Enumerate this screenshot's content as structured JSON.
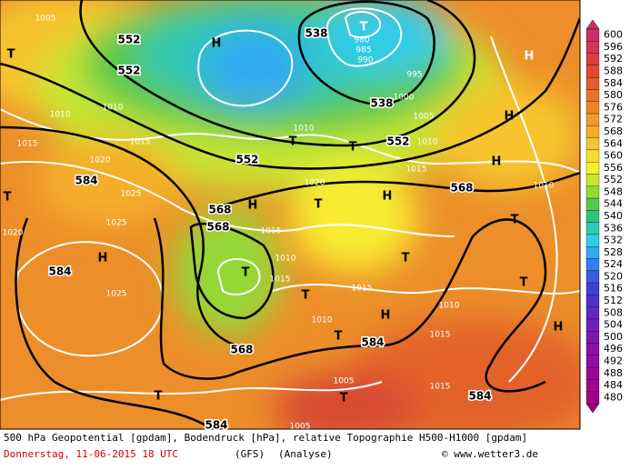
{
  "map": {
    "labels": [
      "552",
      "552",
      "552",
      "552",
      "538",
      "538",
      "568",
      "568",
      "568",
      "568",
      "584",
      "584",
      "584",
      "584",
      "584",
      "1005",
      "1010",
      "1015",
      "1010",
      "1015",
      "1020",
      "1025",
      "1020",
      "1025",
      "1025",
      "1015",
      "1010",
      "1015",
      "1020",
      "1015",
      "1010",
      "1010",
      "1015",
      "1010",
      "1015",
      "1005",
      "1005",
      "1015",
      "1010",
      "995",
      "1000",
      "1005",
      "1010",
      "980",
      "985",
      "990",
      "H",
      "H",
      "H",
      "H",
      "H",
      "H",
      "H",
      "H",
      "H",
      "T",
      "T",
      "T",
      "T",
      "T",
      "T",
      "T",
      "T",
      "T",
      "T",
      "T",
      "T",
      "T",
      "T"
    ],
    "colorbar": {
      "values": [
        600,
        596,
        592,
        588,
        584,
        580,
        576,
        572,
        568,
        564,
        560,
        556,
        552,
        548,
        544,
        540,
        536,
        532,
        528,
        524,
        520,
        516,
        512,
        508,
        504,
        500,
        496,
        492,
        488,
        484,
        480
      ],
      "colors": [
        "#c8306a",
        "#d43458",
        "#dc3c40",
        "#e04a30",
        "#e25e2a",
        "#e87228",
        "#ec8628",
        "#f09a2a",
        "#f4ae2c",
        "#f6c42e",
        "#f8dc30",
        "#f4f030",
        "#c8e630",
        "#94d838",
        "#58c848",
        "#30c07c",
        "#30c8b4",
        "#30cce8",
        "#30aaf0",
        "#3080ee",
        "#3a5ae2",
        "#4040d2",
        "#5030c8",
        "#6028c0",
        "#7020b8",
        "#8018b0",
        "#8812a8",
        "#900ea0",
        "#980898",
        "#a00490",
        "#a00088"
      ]
    },
    "footer": {
      "line1": "500 hPa Geopotential [gpdam], Bodendruck [hPa], relative Topographie H500-H1000 [gpdam]",
      "date": "Donnerstag, 11-06-2015  18 UTC",
      "model": "(GFS)",
      "run": "(Analyse)",
      "credit": "© www.wetter3.de"
    }
  }
}
